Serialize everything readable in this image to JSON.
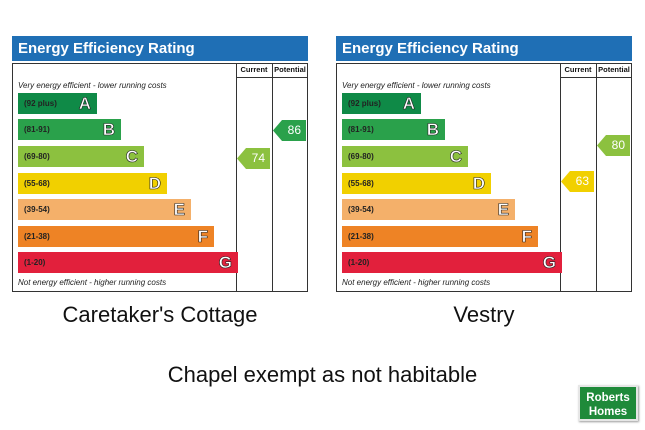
{
  "charts": [
    {
      "title": "Energy Efficiency Rating",
      "col_current": "Current",
      "col_potential": "Potential",
      "top_note": "Very energy efficient - lower running costs",
      "bottom_note": "Not energy efficient - higher running costs",
      "current": "74",
      "potential": "86",
      "caption": "Caretaker's Cottage"
    },
    {
      "title": "Energy Efficiency Rating",
      "col_current": "Current",
      "col_potential": "Potential",
      "top_note": "Very energy efficient - lower running costs",
      "bottom_note": "Not energy efficient - higher running costs",
      "current": "63",
      "potential": "80",
      "caption": "Vestry"
    }
  ],
  "bands": [
    {
      "range": "(92 plus)",
      "letter": "A",
      "color": "#0f8a47"
    },
    {
      "range": "(81-91)",
      "letter": "B",
      "color": "#2aa14b"
    },
    {
      "range": "(69-80)",
      "letter": "C",
      "color": "#8cc13f"
    },
    {
      "range": "(55-68)",
      "letter": "D",
      "color": "#f1d000"
    },
    {
      "range": "(39-54)",
      "letter": "E",
      "color": "#f4b06a"
    },
    {
      "range": "(21-38)",
      "letter": "F",
      "color": "#ee8325"
    },
    {
      "range": "(1-20)",
      "letter": "G",
      "color": "#e2203c"
    }
  ],
  "footer": "Chapel exempt as not habitable",
  "logo": {
    "line1": "Roberts",
    "line2": "Homes"
  }
}
